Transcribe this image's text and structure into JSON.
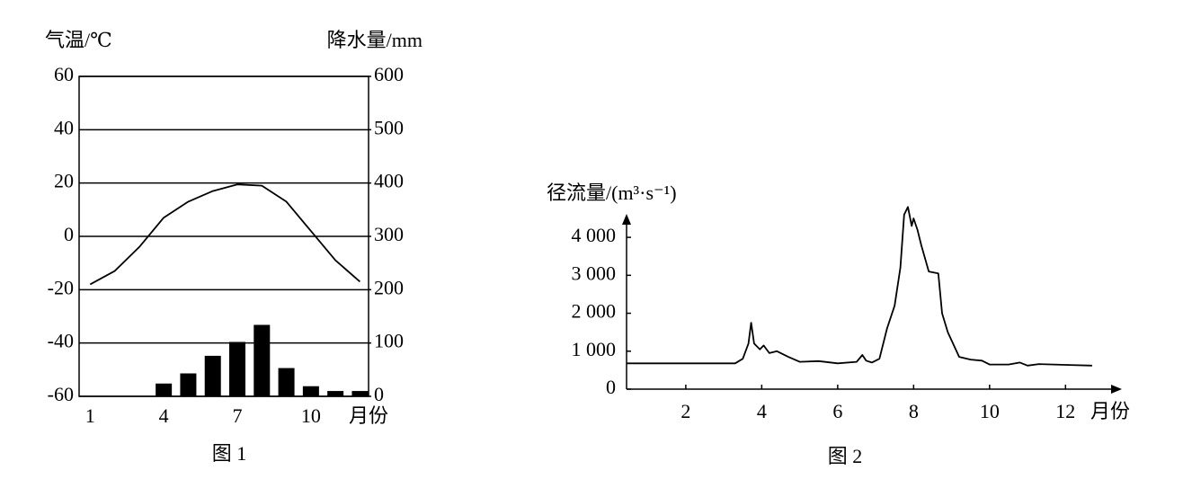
{
  "chart_data": [
    {
      "type": "combo",
      "caption": "图 1",
      "ylabel": "气温/℃",
      "y2label": "降水量/mm",
      "xlabel": "月份",
      "x": [
        1,
        2,
        3,
        4,
        5,
        6,
        7,
        8,
        9,
        10,
        11,
        12
      ],
      "xlim": [
        0.55,
        12.35
      ],
      "xticks": [
        1,
        4,
        7,
        10
      ],
      "ylim": [
        -60,
        60
      ],
      "yticks": [
        60,
        40,
        20,
        0,
        -20,
        -40,
        -60
      ],
      "y2lim": [
        0,
        600
      ],
      "y2ticks": [
        600,
        500,
        400,
        300,
        200,
        100,
        0
      ],
      "grid": true,
      "series": [
        {
          "type": "line",
          "axis": "y",
          "color": "#000000",
          "values": [
            -18,
            -13,
            -4,
            7,
            13,
            17,
            19.5,
            19,
            13,
            2,
            -9,
            -17
          ]
        },
        {
          "type": "bar",
          "axis": "y2",
          "color": "#000000",
          "values": [
            0,
            0,
            0,
            24,
            43,
            76,
            102,
            134,
            53,
            19,
            10,
            10
          ]
        }
      ]
    },
    {
      "type": "line",
      "caption": "图 2",
      "ylabel": "径流量/(m³·s⁻¹)",
      "xlabel": "月份",
      "color": "#000000",
      "xlim": [
        0.44,
        13.2
      ],
      "xticks": [
        2,
        4,
        6,
        8,
        10,
        12
      ],
      "ylim": [
        0,
        4500
      ],
      "yticks": [
        0,
        {
          "value": 1000,
          "label": "1 000"
        },
        {
          "value": 2000,
          "label": "2 000"
        },
        {
          "value": 3000,
          "label": "3 000"
        },
        {
          "value": 4000,
          "label": "4 000"
        }
      ],
      "x": [
        0.45,
        3.3,
        3.5,
        3.65,
        3.72,
        3.8,
        3.95,
        4.05,
        4.2,
        4.4,
        4.7,
        5.0,
        5.5,
        6.0,
        6.5,
        6.65,
        6.75,
        6.9,
        7.1,
        7.3,
        7.5,
        7.65,
        7.75,
        7.85,
        7.95,
        8.0,
        8.1,
        8.2,
        8.4,
        8.65,
        8.75,
        8.9,
        9.2,
        9.5,
        9.8,
        10.0,
        10.5,
        10.8,
        11.0,
        11.3,
        12.0,
        12.7
      ],
      "y": [
        680,
        680,
        800,
        1200,
        1750,
        1200,
        1050,
        1150,
        950,
        1000,
        850,
        720,
        740,
        680,
        720,
        900,
        750,
        700,
        800,
        1600,
        2200,
        3200,
        4600,
        4800,
        4300,
        4500,
        4200,
        3800,
        3100,
        3050,
        2000,
        1500,
        850,
        780,
        750,
        650,
        650,
        700,
        620,
        660,
        640,
        620
      ]
    }
  ]
}
